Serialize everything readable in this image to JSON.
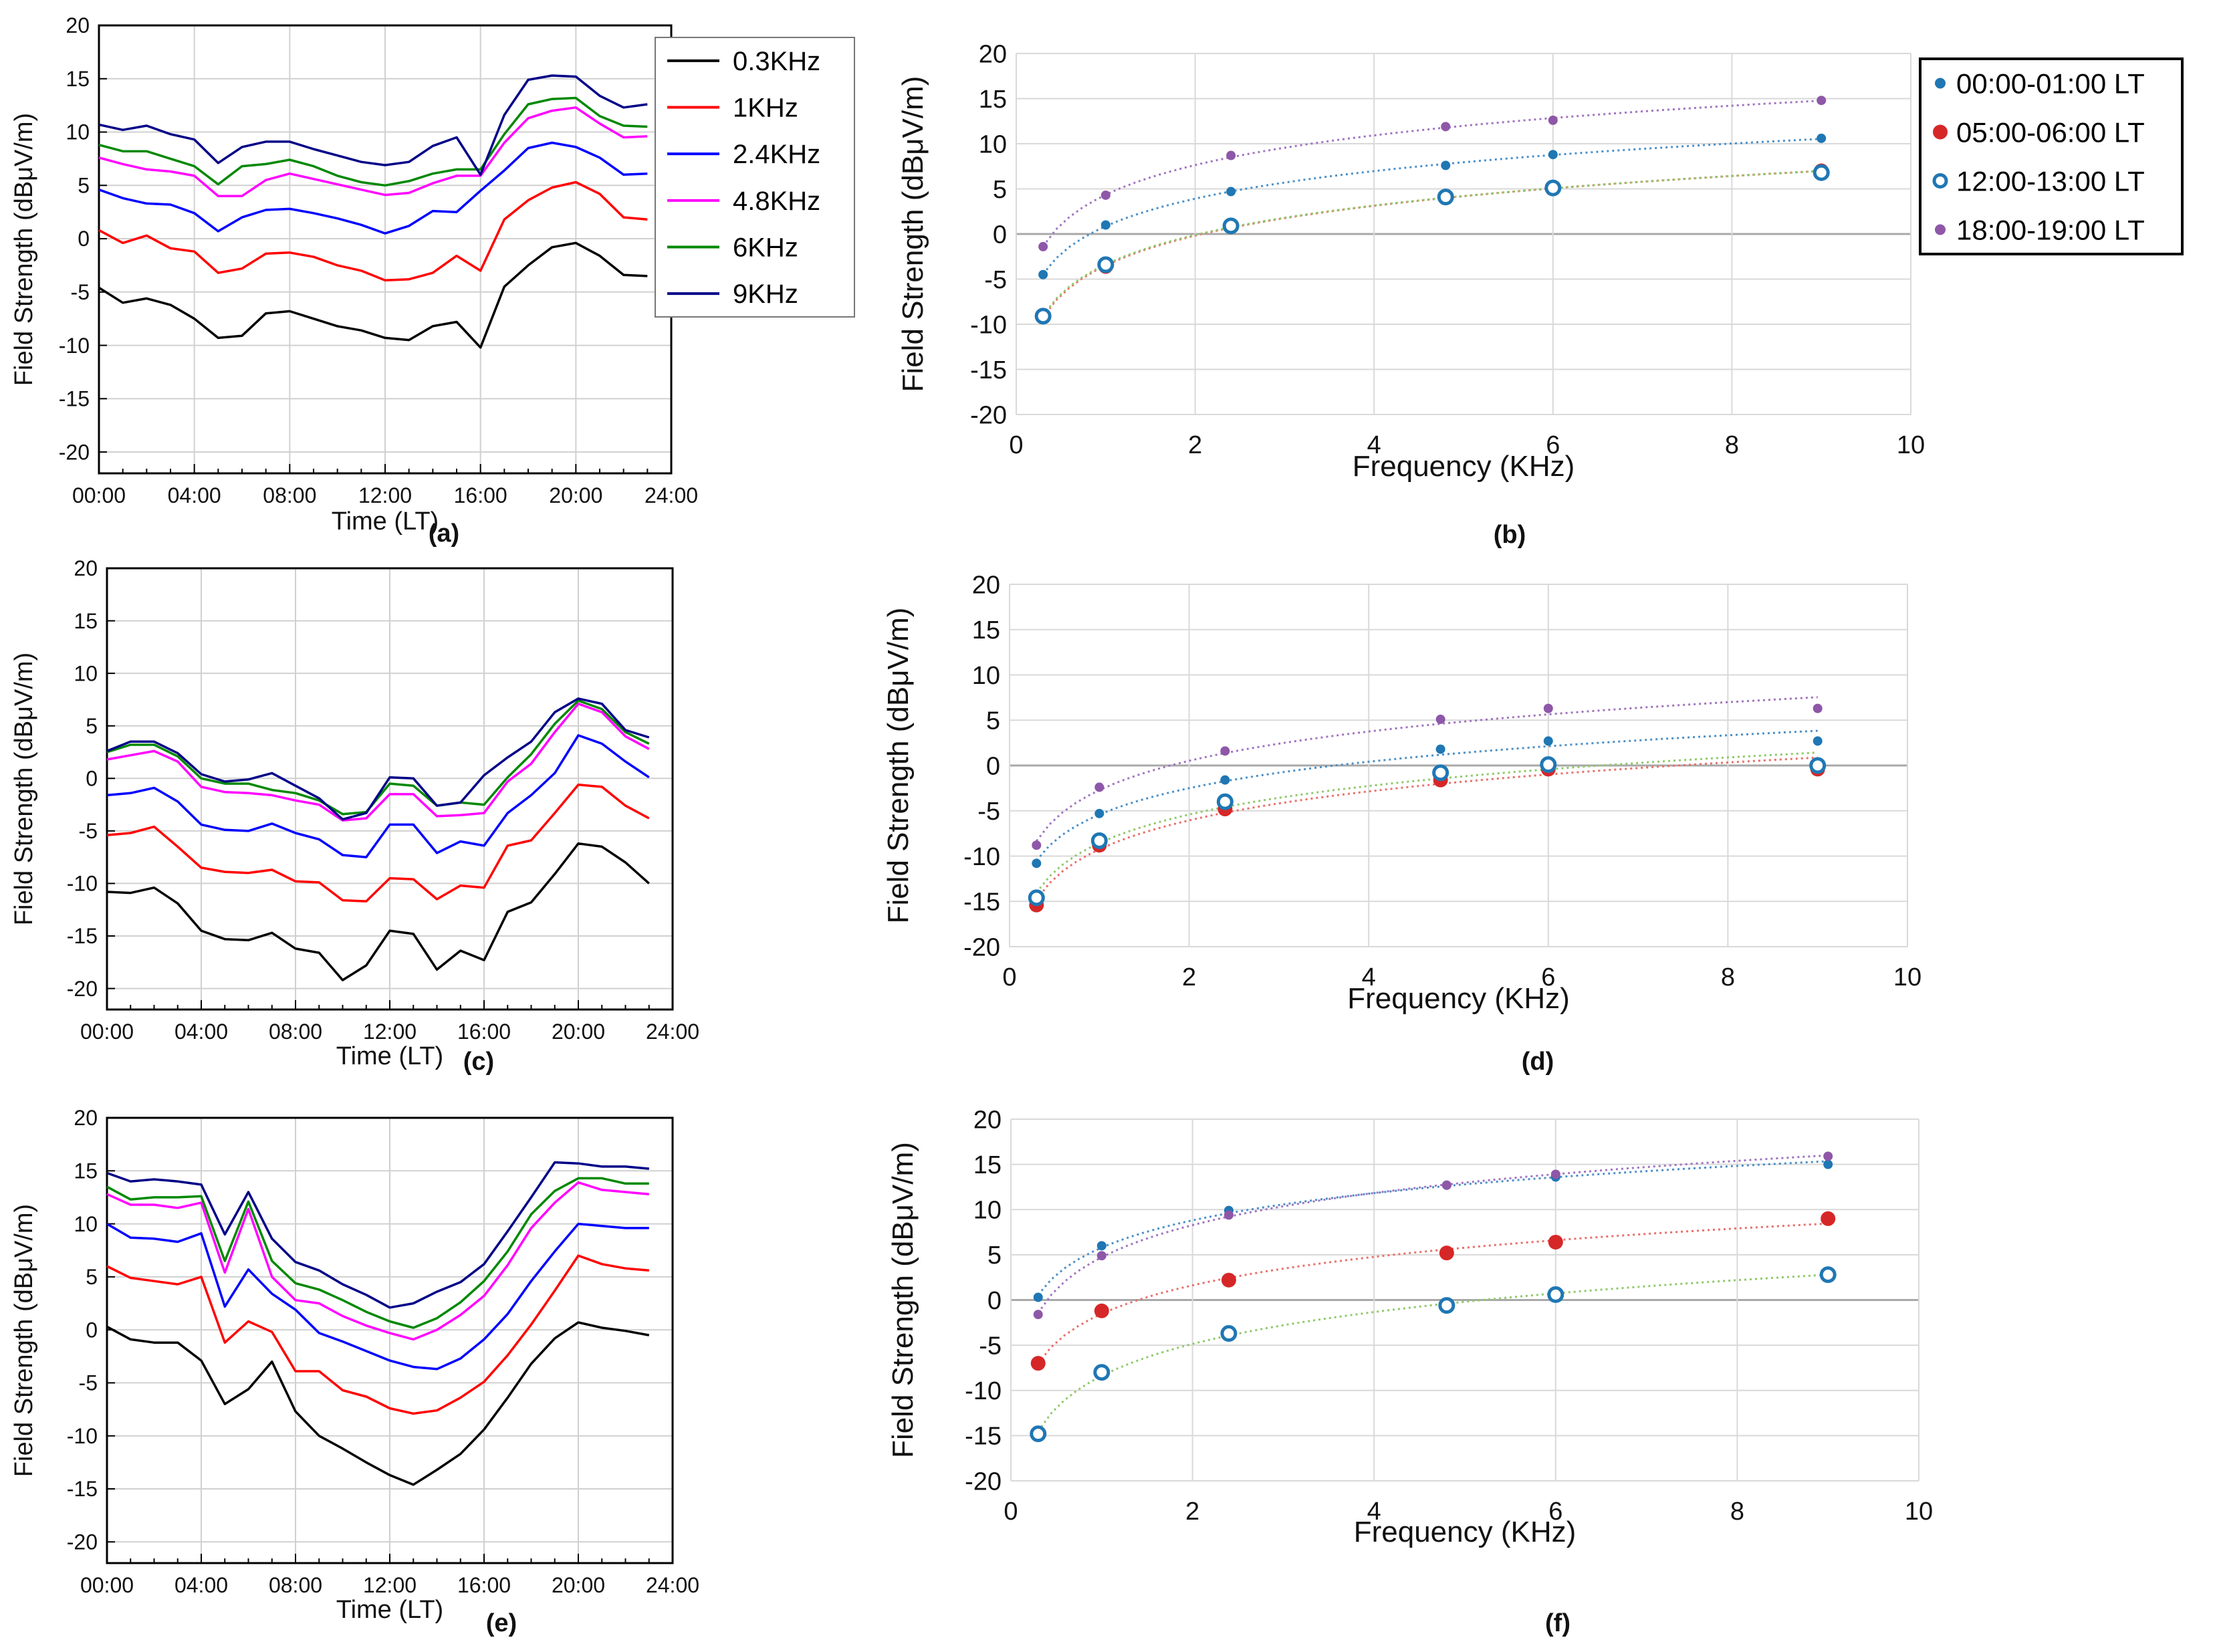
{
  "chart_data": [
    {
      "id": "a",
      "panel_label": "(a)",
      "type": "line",
      "xlabel": "Time (LT)",
      "ylabel": "Field Strength (dBμV/m)",
      "x_tick_labels": [
        "00:00",
        "04:00",
        "08:00",
        "12:00",
        "16:00",
        "20:00",
        "24:00"
      ],
      "y_ticks": [
        -20,
        -15,
        -10,
        -5,
        0,
        5,
        10,
        15,
        20
      ],
      "xlim": [
        0,
        24
      ],
      "ylim": [
        -22,
        20
      ],
      "grid": true,
      "legend_position": "outside-right",
      "x": [
        0,
        1,
        2,
        3,
        4,
        5,
        6,
        7,
        8,
        9,
        10,
        11,
        12,
        13,
        14,
        15,
        16,
        17,
        18,
        19,
        20,
        21,
        22,
        23
      ],
      "series": [
        {
          "name": "0.3KHz",
          "color": "#000000",
          "values": [
            -4.6,
            -6,
            -5.6,
            -6.2,
            -7.5,
            -9.3,
            -9.1,
            -7,
            -6.8,
            -7.5,
            -8.2,
            -8.6,
            -9.3,
            -9.5,
            -8.2,
            -7.8,
            -10.2,
            -4.5,
            -2.5,
            -0.8,
            -0.4,
            -1.6,
            -3.4,
            -3.5
          ]
        },
        {
          "name": "1KHz",
          "color": "#ff0000",
          "values": [
            0.8,
            -0.4,
            0.3,
            -0.9,
            -1.2,
            -3.2,
            -2.8,
            -1.4,
            -1.3,
            -1.7,
            -2.5,
            -3,
            -3.9,
            -3.8,
            -3.2,
            -1.6,
            -3,
            1.8,
            3.6,
            4.8,
            5.3,
            4.2,
            2,
            1.8
          ]
        },
        {
          "name": "2.4KHz",
          "color": "#0000ff",
          "values": [
            4.6,
            3.8,
            3.3,
            3.2,
            2.4,
            0.7,
            2,
            2.7,
            2.8,
            2.4,
            1.9,
            1.3,
            0.5,
            1.2,
            2.6,
            2.5,
            4.5,
            6.4,
            8.5,
            9,
            8.6,
            7.6,
            6,
            6.1
          ]
        },
        {
          "name": "4.8KHz",
          "color": "#ff00ff",
          "values": [
            7.6,
            7,
            6.5,
            6.3,
            5.9,
            4,
            4,
            5.5,
            6.1,
            5.6,
            5.1,
            4.6,
            4.1,
            4.3,
            5.2,
            5.9,
            5.9,
            9,
            11.3,
            12,
            12.3,
            10.8,
            9.5,
            9.6
          ]
        },
        {
          "name": "6KHz",
          "color": "#008800",
          "values": [
            8.8,
            8.2,
            8.2,
            7.5,
            6.8,
            5.1,
            6.8,
            7,
            7.4,
            6.8,
            5.9,
            5.3,
            5,
            5.4,
            6.1,
            6.5,
            6.5,
            9.8,
            12.6,
            13.1,
            13.2,
            11.5,
            10.6,
            10.5
          ]
        },
        {
          "name": "9KHz",
          "color": "#000088",
          "values": [
            10.7,
            10.2,
            10.6,
            9.8,
            9.3,
            7.1,
            8.6,
            9.1,
            9.1,
            8.4,
            7.8,
            7.2,
            6.9,
            7.2,
            8.7,
            9.5,
            6,
            11.6,
            14.9,
            15.3,
            15.2,
            13.4,
            12.3,
            12.6
          ]
        }
      ]
    },
    {
      "id": "b",
      "panel_label": "(b)",
      "type": "scatter",
      "xlabel": "Frequency (KHz)",
      "ylabel": "Field Strength (dBμV/m)",
      "x_ticks": [
        0,
        2,
        4,
        6,
        8,
        10
      ],
      "y_ticks": [
        -20,
        -15,
        -10,
        -5,
        0,
        5,
        10,
        15,
        20
      ],
      "xlim": [
        0,
        10
      ],
      "ylim": [
        -20,
        20
      ],
      "grid": true,
      "trendline": "logarithmic",
      "legend_position": "outside-right",
      "x": [
        0.3,
        1,
        2.4,
        4.8,
        6,
        9
      ],
      "series": [
        {
          "name": "00:00-01:00 LT",
          "color": "#1f77b4",
          "marker": "filled-small",
          "values": [
            -4.5,
            1,
            4.7,
            7.6,
            8.8,
            10.6
          ]
        },
        {
          "name": "05:00-06:00 LT",
          "color": "#d62728",
          "marker": "filled-large",
          "values": [
            -9.2,
            -3.6,
            0.8,
            4,
            5,
            7
          ]
        },
        {
          "name": "12:00-13:00 LT",
          "color": "#1f77b4",
          "marker": "hollow",
          "values": [
            -9.1,
            -3.4,
            0.9,
            4.1,
            5.1,
            6.8
          ]
        },
        {
          "name": "18:00-19:00 LT",
          "color": "#8e57a8",
          "marker": "filled-small",
          "values": [
            -1.4,
            4.3,
            8.7,
            11.9,
            12.6,
            14.8
          ]
        }
      ]
    },
    {
      "id": "c",
      "panel_label": "(c)",
      "type": "line",
      "xlabel": "Time (LT)",
      "ylabel": "Field Strength (dBμV/m)",
      "x_tick_labels": [
        "00:00",
        "04:00",
        "08:00",
        "12:00",
        "16:00",
        "20:00",
        "24:00"
      ],
      "y_ticks": [
        -20,
        -15,
        -10,
        -5,
        0,
        5,
        10,
        15,
        20
      ],
      "xlim": [
        0,
        24
      ],
      "ylim": [
        -22,
        20
      ],
      "grid": true,
      "x": [
        0,
        1,
        2,
        3,
        4,
        5,
        6,
        7,
        8,
        9,
        10,
        11,
        12,
        13,
        14,
        15,
        16,
        17,
        18,
        19,
        20,
        21,
        22,
        23
      ],
      "series": [
        {
          "name": "0.3KHz",
          "color": "#000000",
          "values": [
            -10.8,
            -10.9,
            -10.4,
            -11.9,
            -14.5,
            -15.3,
            -15.4,
            -14.7,
            -16.2,
            -16.6,
            -19.2,
            -17.8,
            -14.5,
            -14.8,
            -18.2,
            -16.4,
            -17.3,
            -12.7,
            -11.8,
            -9.1,
            -6.2,
            -6.5,
            -8,
            -10
          ]
        },
        {
          "name": "1KHz",
          "color": "#ff0000",
          "values": [
            -5.4,
            -5.2,
            -4.6,
            -6.5,
            -8.5,
            -8.9,
            -9,
            -8.7,
            -9.8,
            -9.9,
            -11.6,
            -11.7,
            -9.5,
            -9.6,
            -11.5,
            -10.2,
            -10.4,
            -6.4,
            -5.9,
            -3.3,
            -0.6,
            -0.8,
            -2.6,
            -3.8
          ]
        },
        {
          "name": "2.4KHz",
          "color": "#0000ff",
          "values": [
            -1.6,
            -1.4,
            -0.9,
            -2.2,
            -4.4,
            -4.9,
            -5,
            -4.3,
            -5.2,
            -5.8,
            -7.3,
            -7.5,
            -4.4,
            -4.4,
            -7.1,
            -6,
            -6.4,
            -3.3,
            -1.6,
            0.5,
            4.1,
            3.3,
            1.6,
            0.1
          ]
        },
        {
          "name": "4.8KHz",
          "color": "#ff00ff",
          "values": [
            1.8,
            2.2,
            2.6,
            1.6,
            -0.8,
            -1.3,
            -1.4,
            -1.6,
            -2.1,
            -2.5,
            -4,
            -3.8,
            -1.5,
            -1.5,
            -3.6,
            -3.5,
            -3.3,
            -0.3,
            1.4,
            4.4,
            7.1,
            6.3,
            4,
            2.8
          ]
        },
        {
          "name": "6KHz",
          "color": "#008800",
          "values": [
            2.5,
            3.2,
            3.2,
            2.1,
            0,
            -0.5,
            -0.5,
            -1.1,
            -1.4,
            -2.1,
            -3.4,
            -3.2,
            -0.5,
            -0.7,
            -2.6,
            -2.3,
            -2.5,
            0.1,
            2.3,
            5.2,
            7.4,
            6.6,
            4.4,
            3.3
          ]
        },
        {
          "name": "9KHz",
          "color": "#000088",
          "values": [
            2.6,
            3.5,
            3.5,
            2.4,
            0.4,
            -0.3,
            -0.1,
            0.5,
            -0.7,
            -1.9,
            -3.9,
            -3.3,
            0.1,
            0,
            -2.6,
            -2.3,
            0.3,
            2,
            3.5,
            6.3,
            7.6,
            7.1,
            4.6,
            3.9
          ]
        }
      ]
    },
    {
      "id": "d",
      "panel_label": "(d)",
      "type": "scatter",
      "xlabel": "Frequency (KHz)",
      "ylabel": "Field Strength (dBμV/m)",
      "x_ticks": [
        0,
        2,
        4,
        6,
        8,
        10
      ],
      "y_ticks": [
        -20,
        -15,
        -10,
        -5,
        0,
        5,
        10,
        15,
        20
      ],
      "xlim": [
        0,
        10
      ],
      "ylim": [
        -20,
        20
      ],
      "grid": true,
      "trendline": "logarithmic",
      "x": [
        0.3,
        1,
        2.4,
        4.8,
        6,
        9
      ],
      "series": [
        {
          "name": "00:00-01:00 LT",
          "color": "#1f77b4",
          "marker": "filled-small",
          "values": [
            -10.8,
            -5.3,
            -1.6,
            1.8,
            2.7,
            2.7
          ]
        },
        {
          "name": "05:00-06:00 LT",
          "color": "#d62728",
          "marker": "filled-large",
          "values": [
            -15.4,
            -8.8,
            -4.8,
            -1.6,
            -0.4,
            -0.4
          ]
        },
        {
          "name": "12:00-13:00 LT",
          "color": "#1f77b4",
          "marker": "hollow",
          "values": [
            -14.6,
            -8.3,
            -4,
            -0.8,
            0.1,
            0
          ]
        },
        {
          "name": "18:00-19:00 LT",
          "color": "#8e57a8",
          "marker": "filled-small",
          "values": [
            -8.8,
            -2.4,
            1.6,
            5.1,
            6.3,
            6.3
          ]
        }
      ]
    },
    {
      "id": "e",
      "panel_label": "(e)",
      "type": "line",
      "xlabel": "Time (LT)",
      "ylabel": "Field Strength (dBμV/m)",
      "x_tick_labels": [
        "00:00",
        "04:00",
        "08:00",
        "12:00",
        "16:00",
        "20:00",
        "24:00"
      ],
      "y_ticks": [
        -20,
        -15,
        -10,
        -5,
        0,
        5,
        10,
        15,
        20
      ],
      "xlim": [
        0,
        24
      ],
      "ylim": [
        -22,
        20
      ],
      "grid": true,
      "x": [
        0,
        1,
        2,
        3,
        4,
        5,
        6,
        7,
        8,
        9,
        10,
        11,
        12,
        13,
        14,
        15,
        16,
        17,
        18,
        19,
        20,
        21,
        22,
        23
      ],
      "series": [
        {
          "name": "0.3KHz",
          "color": "#000000",
          "values": [
            0.3,
            -0.9,
            -1.2,
            -1.2,
            -2.9,
            -7,
            -5.6,
            -3,
            -7.7,
            -10,
            -11.2,
            -12.5,
            -13.7,
            -14.6,
            -13.2,
            -11.7,
            -9.4,
            -6.4,
            -3.2,
            -0.8,
            0.7,
            0.2,
            -0.1,
            -0.5
          ]
        },
        {
          "name": "1KHz",
          "color": "#ff0000",
          "values": [
            6,
            4.9,
            4.6,
            4.3,
            5,
            -1.2,
            0.8,
            -0.2,
            -3.9,
            -3.9,
            -5.7,
            -6.3,
            -7.4,
            -7.9,
            -7.6,
            -6.4,
            -4.9,
            -2.4,
            0.5,
            3.7,
            7,
            6.2,
            5.8,
            5.6
          ]
        },
        {
          "name": "2.4KHz",
          "color": "#0000ff",
          "values": [
            10,
            8.7,
            8.6,
            8.3,
            9.1,
            2.2,
            5.7,
            3.4,
            1.9,
            -0.3,
            -1.1,
            -2,
            -2.9,
            -3.5,
            -3.7,
            -2.7,
            -0.9,
            1.5,
            4.6,
            7.4,
            10,
            9.8,
            9.6,
            9.6
          ]
        },
        {
          "name": "4.8KHz",
          "color": "#ff00ff",
          "values": [
            12.8,
            11.8,
            11.8,
            11.5,
            12,
            5.4,
            11.4,
            5,
            2.8,
            2.5,
            1.3,
            0.4,
            -0.3,
            -0.9,
            0,
            1.4,
            3.2,
            6.1,
            9.6,
            12,
            13.9,
            13.2,
            13,
            12.8
          ]
        },
        {
          "name": "6KHz",
          "color": "#008800",
          "values": [
            13.5,
            12.3,
            12.5,
            12.5,
            12.6,
            6.5,
            12.1,
            6.5,
            4.4,
            3.8,
            2.8,
            1.7,
            0.8,
            0.2,
            1.1,
            2.6,
            4.6,
            7.4,
            10.9,
            13.1,
            14.3,
            14.3,
            13.8,
            13.8
          ]
        },
        {
          "name": "9KHz",
          "color": "#000088",
          "values": [
            14.8,
            14,
            14.2,
            14,
            13.7,
            9,
            13,
            8.6,
            6.4,
            5.6,
            4.3,
            3.3,
            2.1,
            2.5,
            3.6,
            4.5,
            6.2,
            9.3,
            12.5,
            15.8,
            15.7,
            15.4,
            15.4,
            15.2
          ]
        }
      ]
    },
    {
      "id": "f",
      "panel_label": "(f)",
      "type": "scatter",
      "xlabel": "Frequency (KHz)",
      "ylabel": "Field Strength (dBμV/m)",
      "x_ticks": [
        0,
        2,
        4,
        6,
        8,
        10
      ],
      "y_ticks": [
        -20,
        -15,
        -10,
        -5,
        0,
        5,
        10,
        15,
        20
      ],
      "xlim": [
        0,
        10
      ],
      "ylim": [
        -20,
        20
      ],
      "grid": true,
      "trendline": "logarithmic",
      "x": [
        0.3,
        1,
        2.4,
        4.8,
        6,
        9
      ],
      "series": [
        {
          "name": "00:00-01:00 LT",
          "color": "#1f77b4",
          "marker": "filled-small",
          "values": [
            0.3,
            6,
            9.9,
            12.7,
            13.6,
            15
          ]
        },
        {
          "name": "05:00-06:00 LT",
          "color": "#d62728",
          "marker": "filled-large",
          "values": [
            -7,
            -1.2,
            2.2,
            5.2,
            6.4,
            9
          ]
        },
        {
          "name": "12:00-13:00 LT",
          "color": "#1f77b4",
          "marker": "hollow",
          "values": [
            -14.8,
            -8,
            -3.7,
            -0.6,
            0.6,
            2.8
          ]
        },
        {
          "name": "18:00-19:00 LT",
          "color": "#8e57a8",
          "marker": "filled-small",
          "values": [
            -1.6,
            4.9,
            9.4,
            12.7,
            13.9,
            15.9
          ]
        }
      ]
    }
  ]
}
